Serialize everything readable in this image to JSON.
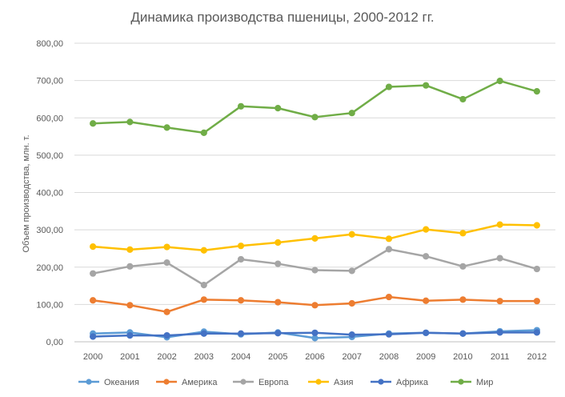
{
  "chart_data": {
    "type": "line",
    "title": "Динамика производства пшеницы, 2000-2012 гг.",
    "ylabel": "Объем производства, млн. т.",
    "xlabel": "",
    "x": [
      "2000",
      "2001",
      "2002",
      "2003",
      "2004",
      "2005",
      "2006",
      "2007",
      "2008",
      "2009",
      "2010",
      "2011",
      "2012"
    ],
    "ylim": [
      0,
      800
    ],
    "yticks": [
      "0,00",
      "100,00",
      "200,00",
      "300,00",
      "400,00",
      "500,00",
      "600,00",
      "700,00",
      "800,00"
    ],
    "grid": true,
    "legend_position": "bottom",
    "series": [
      {
        "name": "Океания",
        "color": "#5b9bd5",
        "values": [
          22,
          25,
          12,
          27,
          20,
          25,
          10,
          13,
          22,
          24,
          22,
          28,
          31
        ]
      },
      {
        "name": "Америка",
        "color": "#ed7d31",
        "values": [
          111,
          98,
          80,
          113,
          111,
          106,
          98,
          103,
          120,
          110,
          113,
          109,
          109
        ]
      },
      {
        "name": "Европа",
        "color": "#a5a5a5",
        "values": [
          183,
          202,
          212,
          152,
          221,
          209,
          192,
          190,
          248,
          229,
          202,
          224,
          195
        ]
      },
      {
        "name": "Азия",
        "color": "#ffc000",
        "values": [
          255,
          247,
          254,
          245,
          257,
          266,
          277,
          288,
          276,
          301,
          291,
          314,
          312
        ]
      },
      {
        "name": "Африка",
        "color": "#4472c4",
        "values": [
          14,
          17,
          17,
          22,
          22,
          23,
          24,
          19,
          20,
          24,
          22,
          25,
          25
        ]
      },
      {
        "name": "Мир",
        "color": "#70ad47",
        "values": [
          585,
          589,
          574,
          560,
          631,
          626,
          602,
          613,
          683,
          687,
          650,
          699,
          671
        ]
      }
    ]
  }
}
